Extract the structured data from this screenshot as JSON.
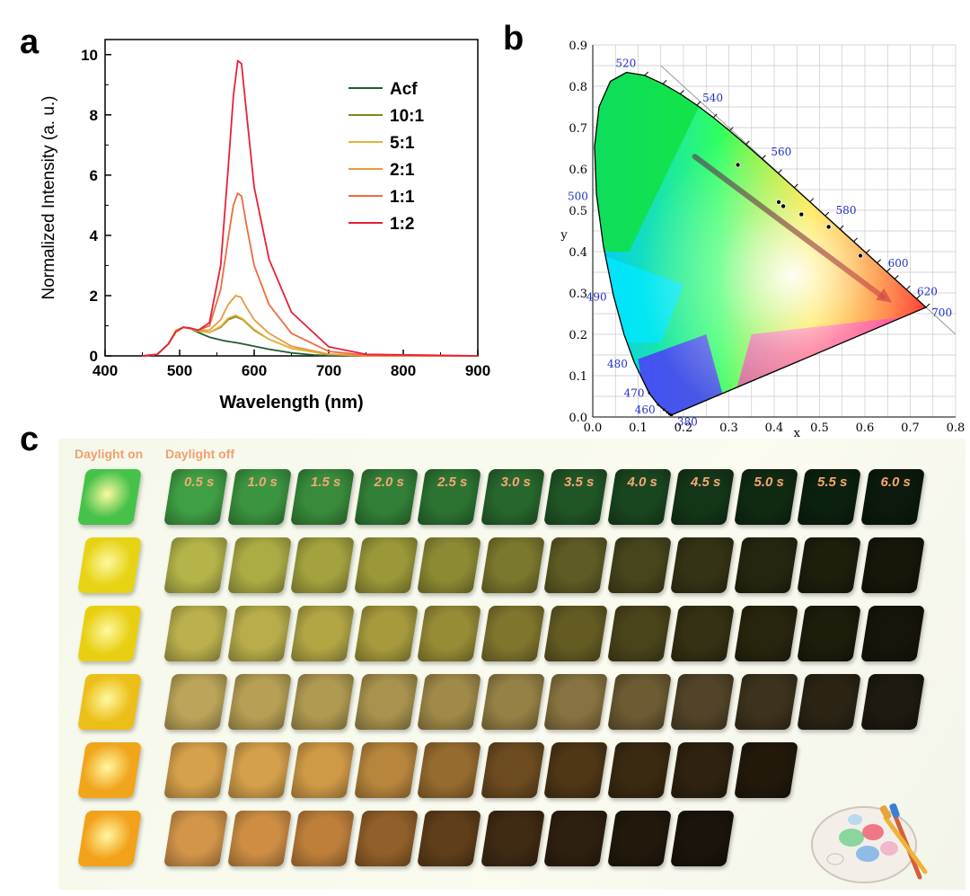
{
  "panel_labels": {
    "a": "a",
    "b": "b",
    "c": "c"
  },
  "chart_data": [
    {
      "type": "line",
      "panel": "a",
      "title": "",
      "xlabel": "Wavelength (nm)",
      "ylabel": "Normalized Intensity (a. u.)",
      "xlim": [
        400,
        900
      ],
      "ylim": [
        0,
        10.5
      ],
      "xticks": [
        "400",
        "500",
        "600",
        "700",
        "800",
        "900"
      ],
      "yticks": [
        "0",
        "2",
        "4",
        "6",
        "8",
        "10"
      ],
      "legend_position": "top-right",
      "series": [
        {
          "name": "Acf",
          "color": "#1e5e2a",
          "x": [
            450,
            470,
            485,
            495,
            505,
            515,
            525,
            540,
            560,
            580,
            600,
            620,
            650,
            680,
            700,
            750,
            900
          ],
          "y": [
            0,
            0.05,
            0.4,
            0.85,
            0.95,
            0.9,
            0.78,
            0.62,
            0.5,
            0.42,
            0.32,
            0.22,
            0.1,
            0.03,
            0.01,
            0,
            0
          ]
        },
        {
          "name": "10:1",
          "color": "#7a8a20",
          "x": [
            450,
            470,
            485,
            495,
            505,
            515,
            525,
            540,
            555,
            565,
            575,
            585,
            600,
            620,
            650,
            700,
            750,
            900
          ],
          "y": [
            0,
            0.05,
            0.4,
            0.85,
            0.95,
            0.9,
            0.82,
            0.78,
            0.95,
            1.2,
            1.3,
            1.2,
            0.85,
            0.55,
            0.25,
            0.05,
            0,
            0
          ]
        },
        {
          "name": "5:1",
          "color": "#e2b43a",
          "x": [
            450,
            470,
            485,
            495,
            505,
            515,
            525,
            540,
            555,
            565,
            575,
            585,
            600,
            620,
            650,
            700,
            750,
            900
          ],
          "y": [
            0,
            0.05,
            0.4,
            0.85,
            0.95,
            0.9,
            0.82,
            0.78,
            0.98,
            1.25,
            1.35,
            1.22,
            0.88,
            0.55,
            0.25,
            0.05,
            0,
            0
          ]
        },
        {
          "name": "2:1",
          "color": "#eb9a3a",
          "x": [
            450,
            470,
            485,
            495,
            505,
            515,
            525,
            540,
            555,
            565,
            575,
            582,
            590,
            600,
            620,
            650,
            700,
            750,
            900
          ],
          "y": [
            0,
            0.05,
            0.4,
            0.8,
            0.95,
            0.92,
            0.85,
            0.85,
            1.2,
            1.7,
            2.0,
            1.95,
            1.6,
            1.2,
            0.75,
            0.32,
            0.06,
            0,
            0
          ]
        },
        {
          "name": "1:1",
          "color": "#ee6b40",
          "x": [
            450,
            470,
            485,
            495,
            505,
            515,
            525,
            540,
            555,
            565,
            572,
            578,
            583,
            590,
            600,
            620,
            650,
            700,
            750,
            900
          ],
          "y": [
            0,
            0.05,
            0.4,
            0.8,
            0.95,
            0.92,
            0.85,
            1.0,
            2.2,
            3.9,
            5.0,
            5.4,
            5.3,
            4.3,
            3.0,
            1.7,
            0.75,
            0.15,
            0.02,
            0
          ]
        },
        {
          "name": "1:2",
          "color": "#e8203a",
          "x": [
            450,
            470,
            485,
            495,
            505,
            515,
            525,
            540,
            555,
            565,
            572,
            578,
            583,
            590,
            600,
            620,
            650,
            700,
            750,
            900
          ],
          "y": [
            0,
            0.05,
            0.4,
            0.8,
            0.95,
            0.92,
            0.85,
            1.1,
            3.0,
            6.2,
            8.6,
            9.8,
            9.7,
            8.0,
            5.6,
            3.2,
            1.45,
            0.3,
            0.05,
            0
          ]
        }
      ]
    },
    {
      "type": "scatter",
      "panel": "b",
      "title": "",
      "xlabel": "x",
      "ylabel": "y",
      "xlim": [
        0.0,
        0.8
      ],
      "ylim": [
        0.0,
        0.9
      ],
      "xticks": [
        "0.0",
        "0.1",
        "0.2",
        "0.3",
        "0.4",
        "0.5",
        "0.6",
        "0.7",
        "0.8"
      ],
      "yticks": [
        "0.0",
        "0.1",
        "0.2",
        "0.3",
        "0.4",
        "0.5",
        "0.6",
        "0.7",
        "0.8",
        "0.9"
      ],
      "grid": true,
      "wavelength_labels": [
        {
          "label": "520",
          "x": 0.074,
          "y": 0.834
        },
        {
          "label": "540",
          "x": 0.23,
          "y": 0.754
        },
        {
          "label": "560",
          "x": 0.373,
          "y": 0.624
        },
        {
          "label": "580",
          "x": 0.512,
          "y": 0.487
        },
        {
          "label": "600",
          "x": 0.627,
          "y": 0.372
        },
        {
          "label": "620",
          "x": 0.691,
          "y": 0.308
        },
        {
          "label": "700",
          "x": 0.735,
          "y": 0.265
        },
        {
          "label": "500",
          "x": 0.008,
          "y": 0.538
        },
        {
          "label": "490",
          "x": 0.045,
          "y": 0.295
        },
        {
          "label": "480",
          "x": 0.091,
          "y": 0.133
        },
        {
          "label": "470",
          "x": 0.124,
          "y": 0.058
        },
        {
          "label": "460",
          "x": 0.144,
          "y": 0.03
        },
        {
          "label": "380",
          "x": 0.174,
          "y": 0.005
        }
      ],
      "points_x": [
        0.32,
        0.41,
        0.42,
        0.46,
        0.52,
        0.59
      ],
      "points_y": [
        0.61,
        0.52,
        0.51,
        0.49,
        0.46,
        0.39
      ]
    }
  ],
  "panel_c": {
    "label_on": "Daylight on",
    "label_off": "Daylight off",
    "times": [
      "0.5 s",
      "1.0 s",
      "1.5 s",
      "2.0 s",
      "2.5 s",
      "3.0 s",
      "3.5 s",
      "4.0 s",
      "4.5 s",
      "5.0 s",
      "5.5 s",
      "6.0 s"
    ],
    "rows": [
      {
        "on": "#46c24a",
        "off": [
          "#3f9f44",
          "#3b9540",
          "#378b3b",
          "#327f37",
          "#2c7332",
          "#27662d",
          "#205526",
          "#1a461f",
          "#143618",
          "#102a12",
          "#0c200e",
          "#0b1a0c"
        ]
      },
      {
        "on": "#e6d314",
        "off": [
          "#b4b44a",
          "#acac45",
          "#a3a23f",
          "#9a9838",
          "#8d8a34",
          "#7a772e",
          "#5e5b25",
          "#47451c",
          "#353315",
          "#262610",
          "#1e1e0d",
          "#161609"
        ]
      },
      {
        "on": "#e8cf12",
        "off": [
          "#bbb04d",
          "#b8ad4a",
          "#b1a544",
          "#a69a3c",
          "#978b35",
          "#7f752d",
          "#645b23",
          "#4a441b",
          "#353114",
          "#28250e",
          "#1e1c0b",
          "#171509"
        ]
      },
      {
        "on": "#ebbf18",
        "off": [
          "#bca55a",
          "#b7a055",
          "#b09a52",
          "#a8924e",
          "#a08a49",
          "#958046",
          "#877341",
          "#6c5b33",
          "#524428",
          "#3c321d",
          "#2b2415",
          "#1e1a10"
        ]
      },
      {
        "on": "#f0a51b",
        "off": [
          "#d6a14c",
          "#d4a04b",
          "#cf9a46",
          "#b7853c",
          "#966b2f",
          "#6c4b20",
          "#4f3616",
          "#3b2a12",
          "#2f2210",
          "#22190b"
        ]
      },
      {
        "on": "#f2a11a",
        "off": [
          "#d3954a",
          "#cd8e44",
          "#bd7f3a",
          "#915f29",
          "#5f3e1a",
          "#3f2a13",
          "#2e2010",
          "#22190c",
          "#1b140a"
        ]
      }
    ]
  }
}
